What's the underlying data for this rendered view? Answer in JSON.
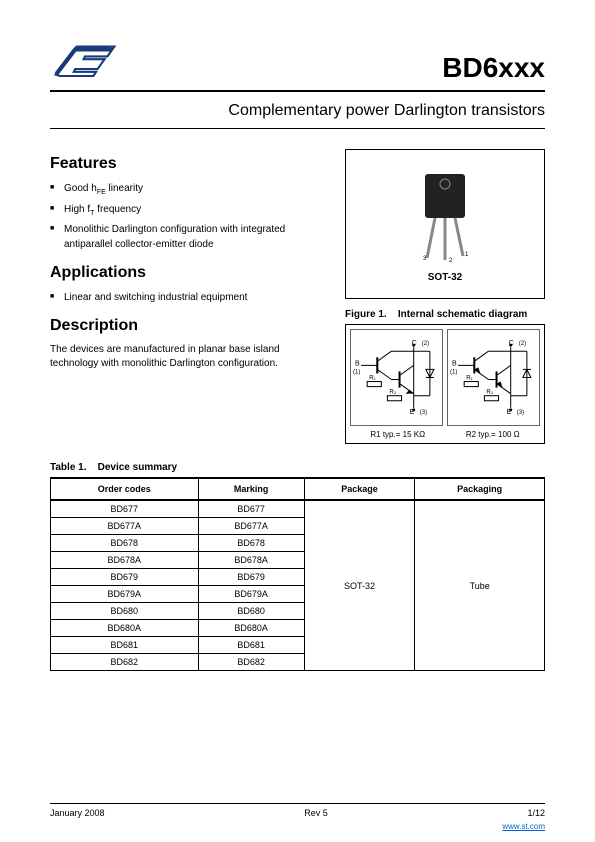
{
  "main_title": "BD6xxx",
  "subtitle": "Complementary power Darlington transistors",
  "features": {
    "heading": "Features",
    "items": [
      "Good hFE linearity",
      "High fT frequency",
      "Monolithic Darlington configuration with integrated antiparallel collector-emitter diode"
    ]
  },
  "applications": {
    "heading": "Applications",
    "items": [
      "Linear and switching industrial equipment"
    ]
  },
  "description": {
    "heading": "Description",
    "text": "The devices are manufactured in planar base island technology with monolithic Darlington configuration."
  },
  "package_label": "SOT-32",
  "figure1": {
    "caption_num": "Figure 1.",
    "caption_text": "Internal schematic diagram",
    "r1_label": "R1 typ.= 15 KΩ",
    "r2_label": "R2 typ.= 100 Ω",
    "node_labels": {
      "b": "B",
      "c": "C",
      "e": "E",
      "r1": "R₁",
      "r2": "R₂"
    }
  },
  "table1": {
    "caption_num": "Table 1.",
    "caption_text": "Device summary",
    "columns": [
      "Order codes",
      "Marking",
      "Package",
      "Packaging"
    ],
    "rows": [
      [
        "BD677",
        "BD677"
      ],
      [
        "BD677A",
        "BD677A"
      ],
      [
        "BD678",
        "BD678"
      ],
      [
        "BD678A",
        "BD678A"
      ],
      [
        "BD679",
        "BD679"
      ],
      [
        "BD679A",
        "BD679A"
      ],
      [
        "BD680",
        "BD680"
      ],
      [
        "BD680A",
        "BD680A"
      ],
      [
        "BD681",
        "BD681"
      ],
      [
        "BD682",
        "BD682"
      ]
    ],
    "package_merged": "SOT-32",
    "packaging_merged": "Tube"
  },
  "footer": {
    "date": "January 2008",
    "rev": "Rev 5",
    "page": "1/12",
    "url": "www.st.com"
  },
  "colors": {
    "text": "#000000",
    "link": "#0066cc",
    "border": "#000000"
  }
}
